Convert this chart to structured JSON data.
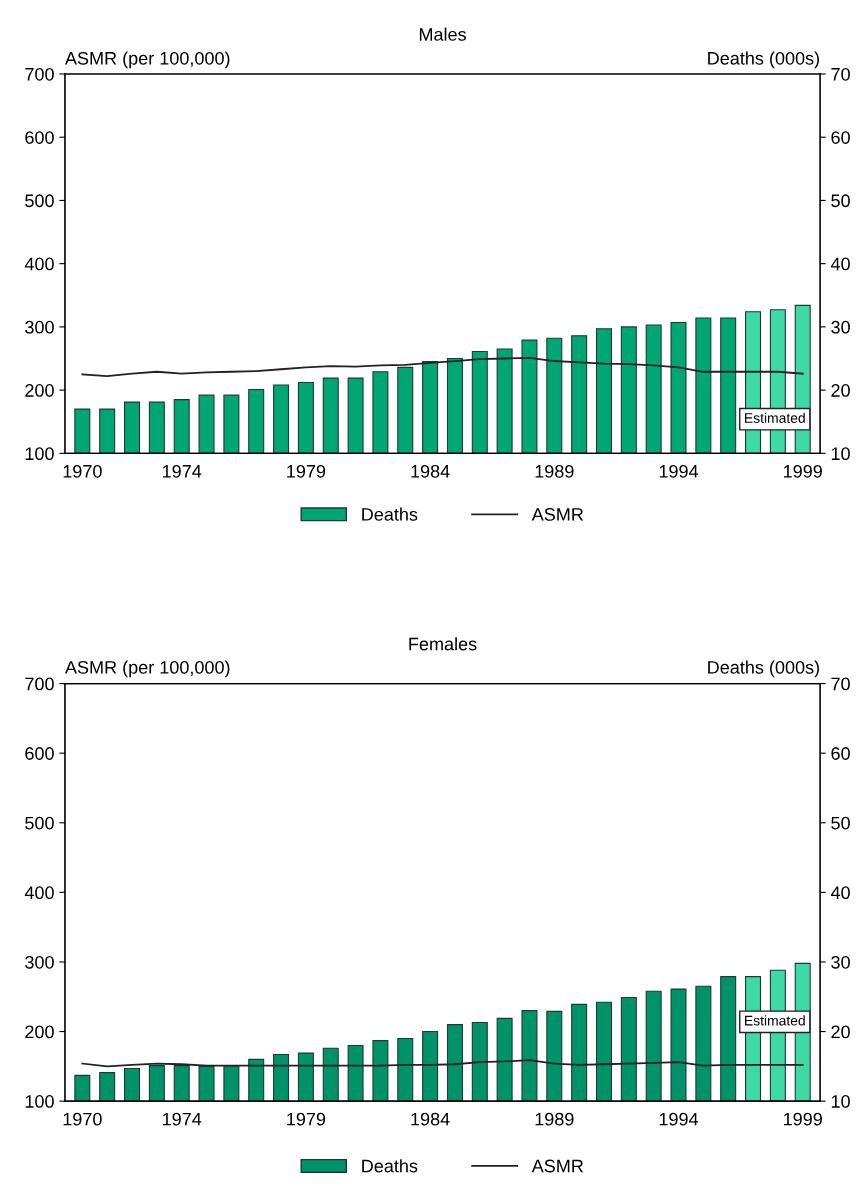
{
  "chart_data": [
    {
      "type": "bar",
      "title": "Males",
      "ylabel": "ASMR (per 100,000)",
      "y2label": "Deaths (000s)",
      "categories": [
        "1970",
        null,
        null,
        null,
        "1974",
        null,
        null,
        null,
        null,
        "1979",
        null,
        null,
        null,
        null,
        "1984",
        null,
        null,
        null,
        null,
        "1989",
        null,
        null,
        null,
        null,
        "1994",
        null,
        null,
        null,
        null,
        "1999"
      ],
      "series": [
        {
          "name": "Deaths",
          "axis": "y2",
          "color": "#00a774",
          "colors": [
            "#00a774",
            "#00a774",
            "#00a774",
            "#00a774",
            "#00a774",
            "#00a774",
            "#00a774",
            "#00a774",
            "#00a774",
            "#00a774",
            "#00a774",
            "#00a774",
            "#00a774",
            "#00a774",
            "#00a774",
            "#00a774",
            "#00a774",
            "#00a774",
            "#00a774",
            "#00a774",
            "#00a774",
            "#00a774",
            "#00a774",
            "#00a774",
            "#00a774",
            "#00a774",
            "#00a774",
            "#3fd9a6",
            "#3fd9a6",
            "#3fd9a6"
          ],
          "values": [
            17.0,
            17.0,
            18.1,
            18.1,
            18.5,
            19.2,
            19.2,
            20.1,
            20.8,
            21.2,
            21.9,
            21.9,
            22.9,
            23.6,
            24.5,
            25.0,
            26.1,
            26.5,
            27.9,
            28.2,
            28.6,
            29.7,
            30.0,
            30.3,
            30.7,
            31.4,
            31.4,
            32.4,
            32.7,
            33.4
          ]
        },
        {
          "name": "ASMR",
          "type": "line",
          "axis": "y",
          "color": "#222222",
          "values": [
            225,
            222,
            226,
            229,
            226,
            228,
            229,
            230,
            233,
            236,
            238,
            237,
            239,
            240,
            243,
            246,
            249,
            250,
            251,
            246,
            244,
            242,
            241,
            239,
            236,
            229,
            229,
            229,
            229,
            226
          ]
        }
      ],
      "ylim": [
        100,
        700
      ],
      "yticks": [
        100,
        200,
        300,
        400,
        500,
        600,
        700
      ],
      "y2lim": [
        10,
        70
      ],
      "y2ticks": [
        10,
        20,
        30,
        40,
        50,
        60,
        70
      ],
      "annotations": [
        "Estimated"
      ],
      "legend": "bottom",
      "grid": false
    },
    {
      "type": "bar",
      "title": "Females",
      "ylabel": "ASMR (per 100,000)",
      "y2label": "Deaths (000s)",
      "categories": [
        "1970",
        null,
        null,
        null,
        "1974",
        null,
        null,
        null,
        null,
        "1979",
        null,
        null,
        null,
        null,
        "1984",
        null,
        null,
        null,
        null,
        "1989",
        null,
        null,
        null,
        null,
        "1994",
        null,
        null,
        null,
        null,
        "1999"
      ],
      "series": [
        {
          "name": "Deaths",
          "axis": "y2",
          "color": "#00936a",
          "colors": [
            "#00936a",
            "#00936a",
            "#00936a",
            "#00936a",
            "#00936a",
            "#00936a",
            "#00936a",
            "#00936a",
            "#00936a",
            "#00936a",
            "#00936a",
            "#00936a",
            "#00936a",
            "#00936a",
            "#00936a",
            "#00936a",
            "#00936a",
            "#00936a",
            "#00936a",
            "#00936a",
            "#00936a",
            "#00936a",
            "#00936a",
            "#00936a",
            "#00936a",
            "#00936a",
            "#00936a",
            "#3fd9a6",
            "#3fd9a6",
            "#3fd9a6"
          ],
          "values": [
            13.7,
            14.1,
            14.7,
            15.1,
            15.1,
            15.0,
            15.1,
            16.0,
            16.7,
            16.9,
            17.6,
            18.0,
            18.7,
            19.0,
            20.0,
            21.0,
            21.3,
            21.9,
            23.0,
            22.9,
            23.9,
            24.2,
            24.9,
            25.8,
            26.1,
            26.5,
            27.9,
            27.9,
            28.8,
            29.8
          ]
        },
        {
          "name": "ASMR",
          "type": "line",
          "axis": "y",
          "color": "#222222",
          "values": [
            154,
            150,
            152,
            154,
            153,
            151,
            151,
            151,
            151,
            151,
            151,
            151,
            151,
            152,
            152,
            153,
            156,
            157,
            159,
            154,
            152,
            153,
            154,
            155,
            156,
            151,
            152,
            152,
            152,
            152
          ]
        }
      ],
      "ylim": [
        100,
        700
      ],
      "yticks": [
        100,
        200,
        300,
        400,
        500,
        600,
        700
      ],
      "y2lim": [
        10,
        70
      ],
      "y2ticks": [
        10,
        20,
        30,
        40,
        50,
        60,
        70
      ],
      "annotations": [
        "Estimated"
      ],
      "legend": "bottom",
      "grid": false
    }
  ]
}
